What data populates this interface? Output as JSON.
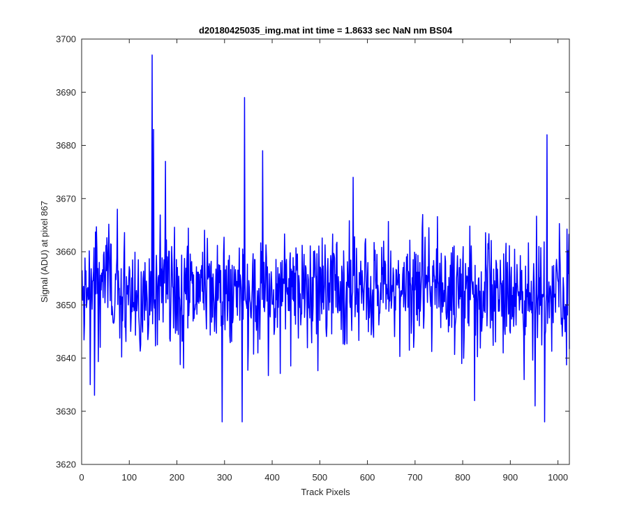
{
  "chart_data": {
    "type": "line",
    "title": "d20180425035_img.mat int time = 1.8633 sec  NaN nm BS04",
    "xlabel": "Track Pixels",
    "ylabel": "Signal (ADU) at pixel 867",
    "xlim": [
      0,
      1024
    ],
    "ylim": [
      3620,
      3700
    ],
    "xticks": [
      0,
      100,
      200,
      300,
      400,
      500,
      600,
      700,
      800,
      900,
      1000
    ],
    "yticks": [
      3620,
      3630,
      3640,
      3650,
      3660,
      3670,
      3680,
      3690,
      3700
    ],
    "grid": false,
    "legend": "none",
    "series": [
      {
        "color": "#0000ff",
        "x_start": 1,
        "x_step": 1,
        "mean": 3653,
        "noise_std": 5.5,
        "min": 3628,
        "max": 3697,
        "notable_points": [
          {
            "x": 18,
            "y": 3635
          },
          {
            "x": 27,
            "y": 3633
          },
          {
            "x": 75,
            "y": 3668
          },
          {
            "x": 148,
            "y": 3697
          },
          {
            "x": 151,
            "y": 3683
          },
          {
            "x": 176,
            "y": 3677
          },
          {
            "x": 295,
            "y": 3628
          },
          {
            "x": 337,
            "y": 3628
          },
          {
            "x": 342,
            "y": 3689
          },
          {
            "x": 380,
            "y": 3679
          },
          {
            "x": 570,
            "y": 3674
          },
          {
            "x": 825,
            "y": 3632
          },
          {
            "x": 952,
            "y": 3631
          },
          {
            "x": 972,
            "y": 3628
          },
          {
            "x": 977,
            "y": 3682
          }
        ]
      }
    ]
  }
}
